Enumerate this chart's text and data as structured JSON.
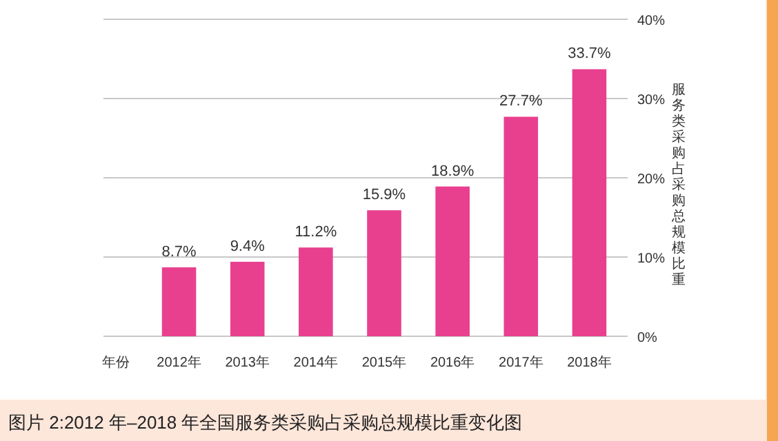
{
  "chart_data": {
    "type": "bar",
    "title": "图片 2:2012 年–2018 年全国服务类采购占采购总规模比重变化图",
    "xlabel": "年份",
    "ylabel": "服务类采购占采购总规模比重",
    "categories": [
      "2012年",
      "2013年",
      "2014年",
      "2015年",
      "2016年",
      "2017年",
      "2018年"
    ],
    "values": [
      8.7,
      9.4,
      11.2,
      15.9,
      18.9,
      27.7,
      33.7
    ],
    "value_labels": [
      "8.7%",
      "9.4%",
      "11.2%",
      "15.9%",
      "18.9%",
      "27.7%",
      "33.7%"
    ],
    "color": "#e8408f",
    "ylim": [
      0,
      40
    ],
    "yticks": [
      {
        "value": 0,
        "label": "0%"
      },
      {
        "value": 10,
        "label": "10%"
      },
      {
        "value": 20,
        "label": "20%"
      },
      {
        "value": 30,
        "label": "30%"
      },
      {
        "value": 40,
        "label": "40%"
      }
    ],
    "grid": "y"
  }
}
